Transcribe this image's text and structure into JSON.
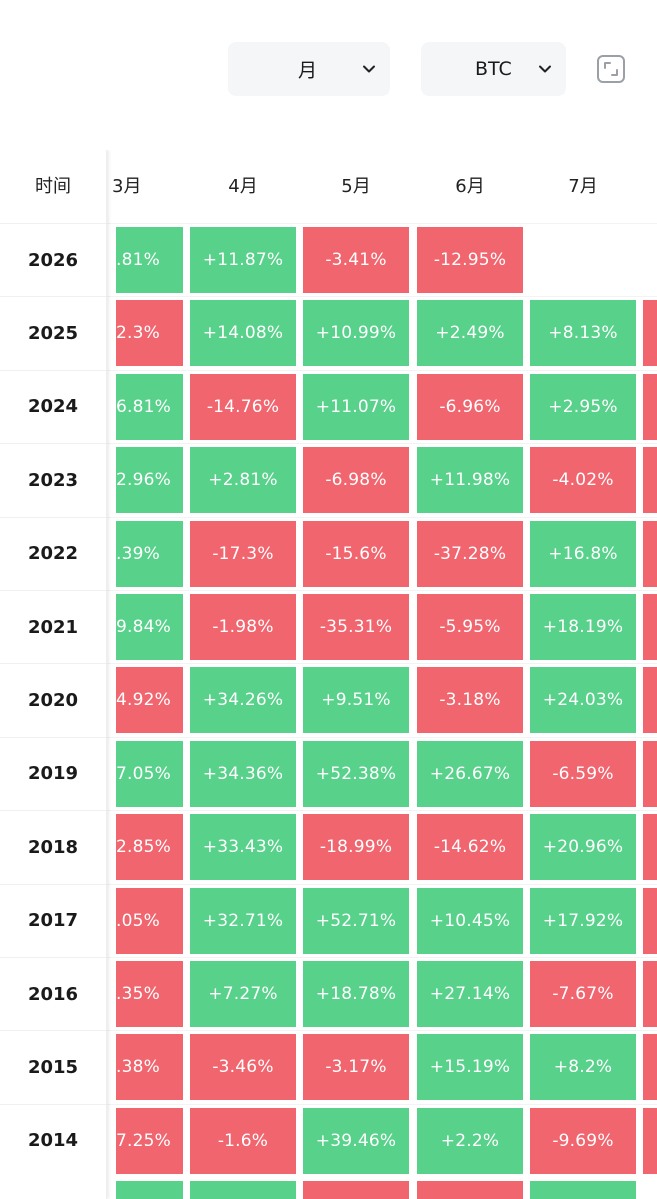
{
  "controls": {
    "period": "月",
    "coin": "BTC"
  },
  "colors": {
    "up": "#58d18b",
    "down": "#f1656f"
  },
  "table": {
    "time_header": "时间",
    "months": [
      "3月",
      "4月",
      "5月",
      "6月",
      "7月"
    ],
    "rows": [
      {
        "year": "2026",
        "cells": [
          ".81%",
          "+11.87%",
          "-3.41%",
          "-12.95%",
          ""
        ],
        "dirs": [
          "up",
          "up",
          "down",
          "down",
          ""
        ]
      },
      {
        "year": "2025",
        "cells": [
          "2.3%",
          "+14.08%",
          "+10.99%",
          "+2.49%",
          "+8.13%"
        ],
        "dirs": [
          "down",
          "up",
          "up",
          "up",
          "up"
        ]
      },
      {
        "year": "2024",
        "cells": [
          "6.81%",
          "-14.76%",
          "+11.07%",
          "-6.96%",
          "+2.95%"
        ],
        "dirs": [
          "up",
          "down",
          "up",
          "down",
          "up"
        ]
      },
      {
        "year": "2023",
        "cells": [
          "2.96%",
          "+2.81%",
          "-6.98%",
          "+11.98%",
          "-4.02%"
        ],
        "dirs": [
          "up",
          "up",
          "down",
          "up",
          "down"
        ]
      },
      {
        "year": "2022",
        "cells": [
          ".39%",
          "-17.3%",
          "-15.6%",
          "-37.28%",
          "+16.8%"
        ],
        "dirs": [
          "up",
          "down",
          "down",
          "down",
          "up"
        ]
      },
      {
        "year": "2021",
        "cells": [
          "9.84%",
          "-1.98%",
          "-35.31%",
          "-5.95%",
          "+18.19%"
        ],
        "dirs": [
          "up",
          "down",
          "down",
          "down",
          "up"
        ]
      },
      {
        "year": "2020",
        "cells": [
          "4.92%",
          "+34.26%",
          "+9.51%",
          "-3.18%",
          "+24.03%"
        ],
        "dirs": [
          "down",
          "up",
          "up",
          "down",
          "up"
        ]
      },
      {
        "year": "2019",
        "cells": [
          "7.05%",
          "+34.36%",
          "+52.38%",
          "+26.67%",
          "-6.59%"
        ],
        "dirs": [
          "up",
          "up",
          "up",
          "up",
          "down"
        ]
      },
      {
        "year": "2018",
        "cells": [
          "2.85%",
          "+33.43%",
          "-18.99%",
          "-14.62%",
          "+20.96%"
        ],
        "dirs": [
          "down",
          "up",
          "down",
          "down",
          "up"
        ]
      },
      {
        "year": "2017",
        "cells": [
          ".05%",
          "+32.71%",
          "+52.71%",
          "+10.45%",
          "+17.92%"
        ],
        "dirs": [
          "down",
          "up",
          "up",
          "up",
          "up"
        ]
      },
      {
        "year": "2016",
        "cells": [
          ".35%",
          "+7.27%",
          "+18.78%",
          "+27.14%",
          "-7.67%"
        ],
        "dirs": [
          "down",
          "up",
          "up",
          "up",
          "down"
        ]
      },
      {
        "year": "2015",
        "cells": [
          ".38%",
          "-3.46%",
          "-3.17%",
          "+15.19%",
          "+8.2%"
        ],
        "dirs": [
          "down",
          "down",
          "down",
          "up",
          "up"
        ]
      },
      {
        "year": "2014",
        "cells": [
          "7.25%",
          "-1.6%",
          "+39.46%",
          "+2.2%",
          "-9.69%"
        ],
        "dirs": [
          "down",
          "down",
          "up",
          "up",
          "down"
        ]
      }
    ]
  }
}
